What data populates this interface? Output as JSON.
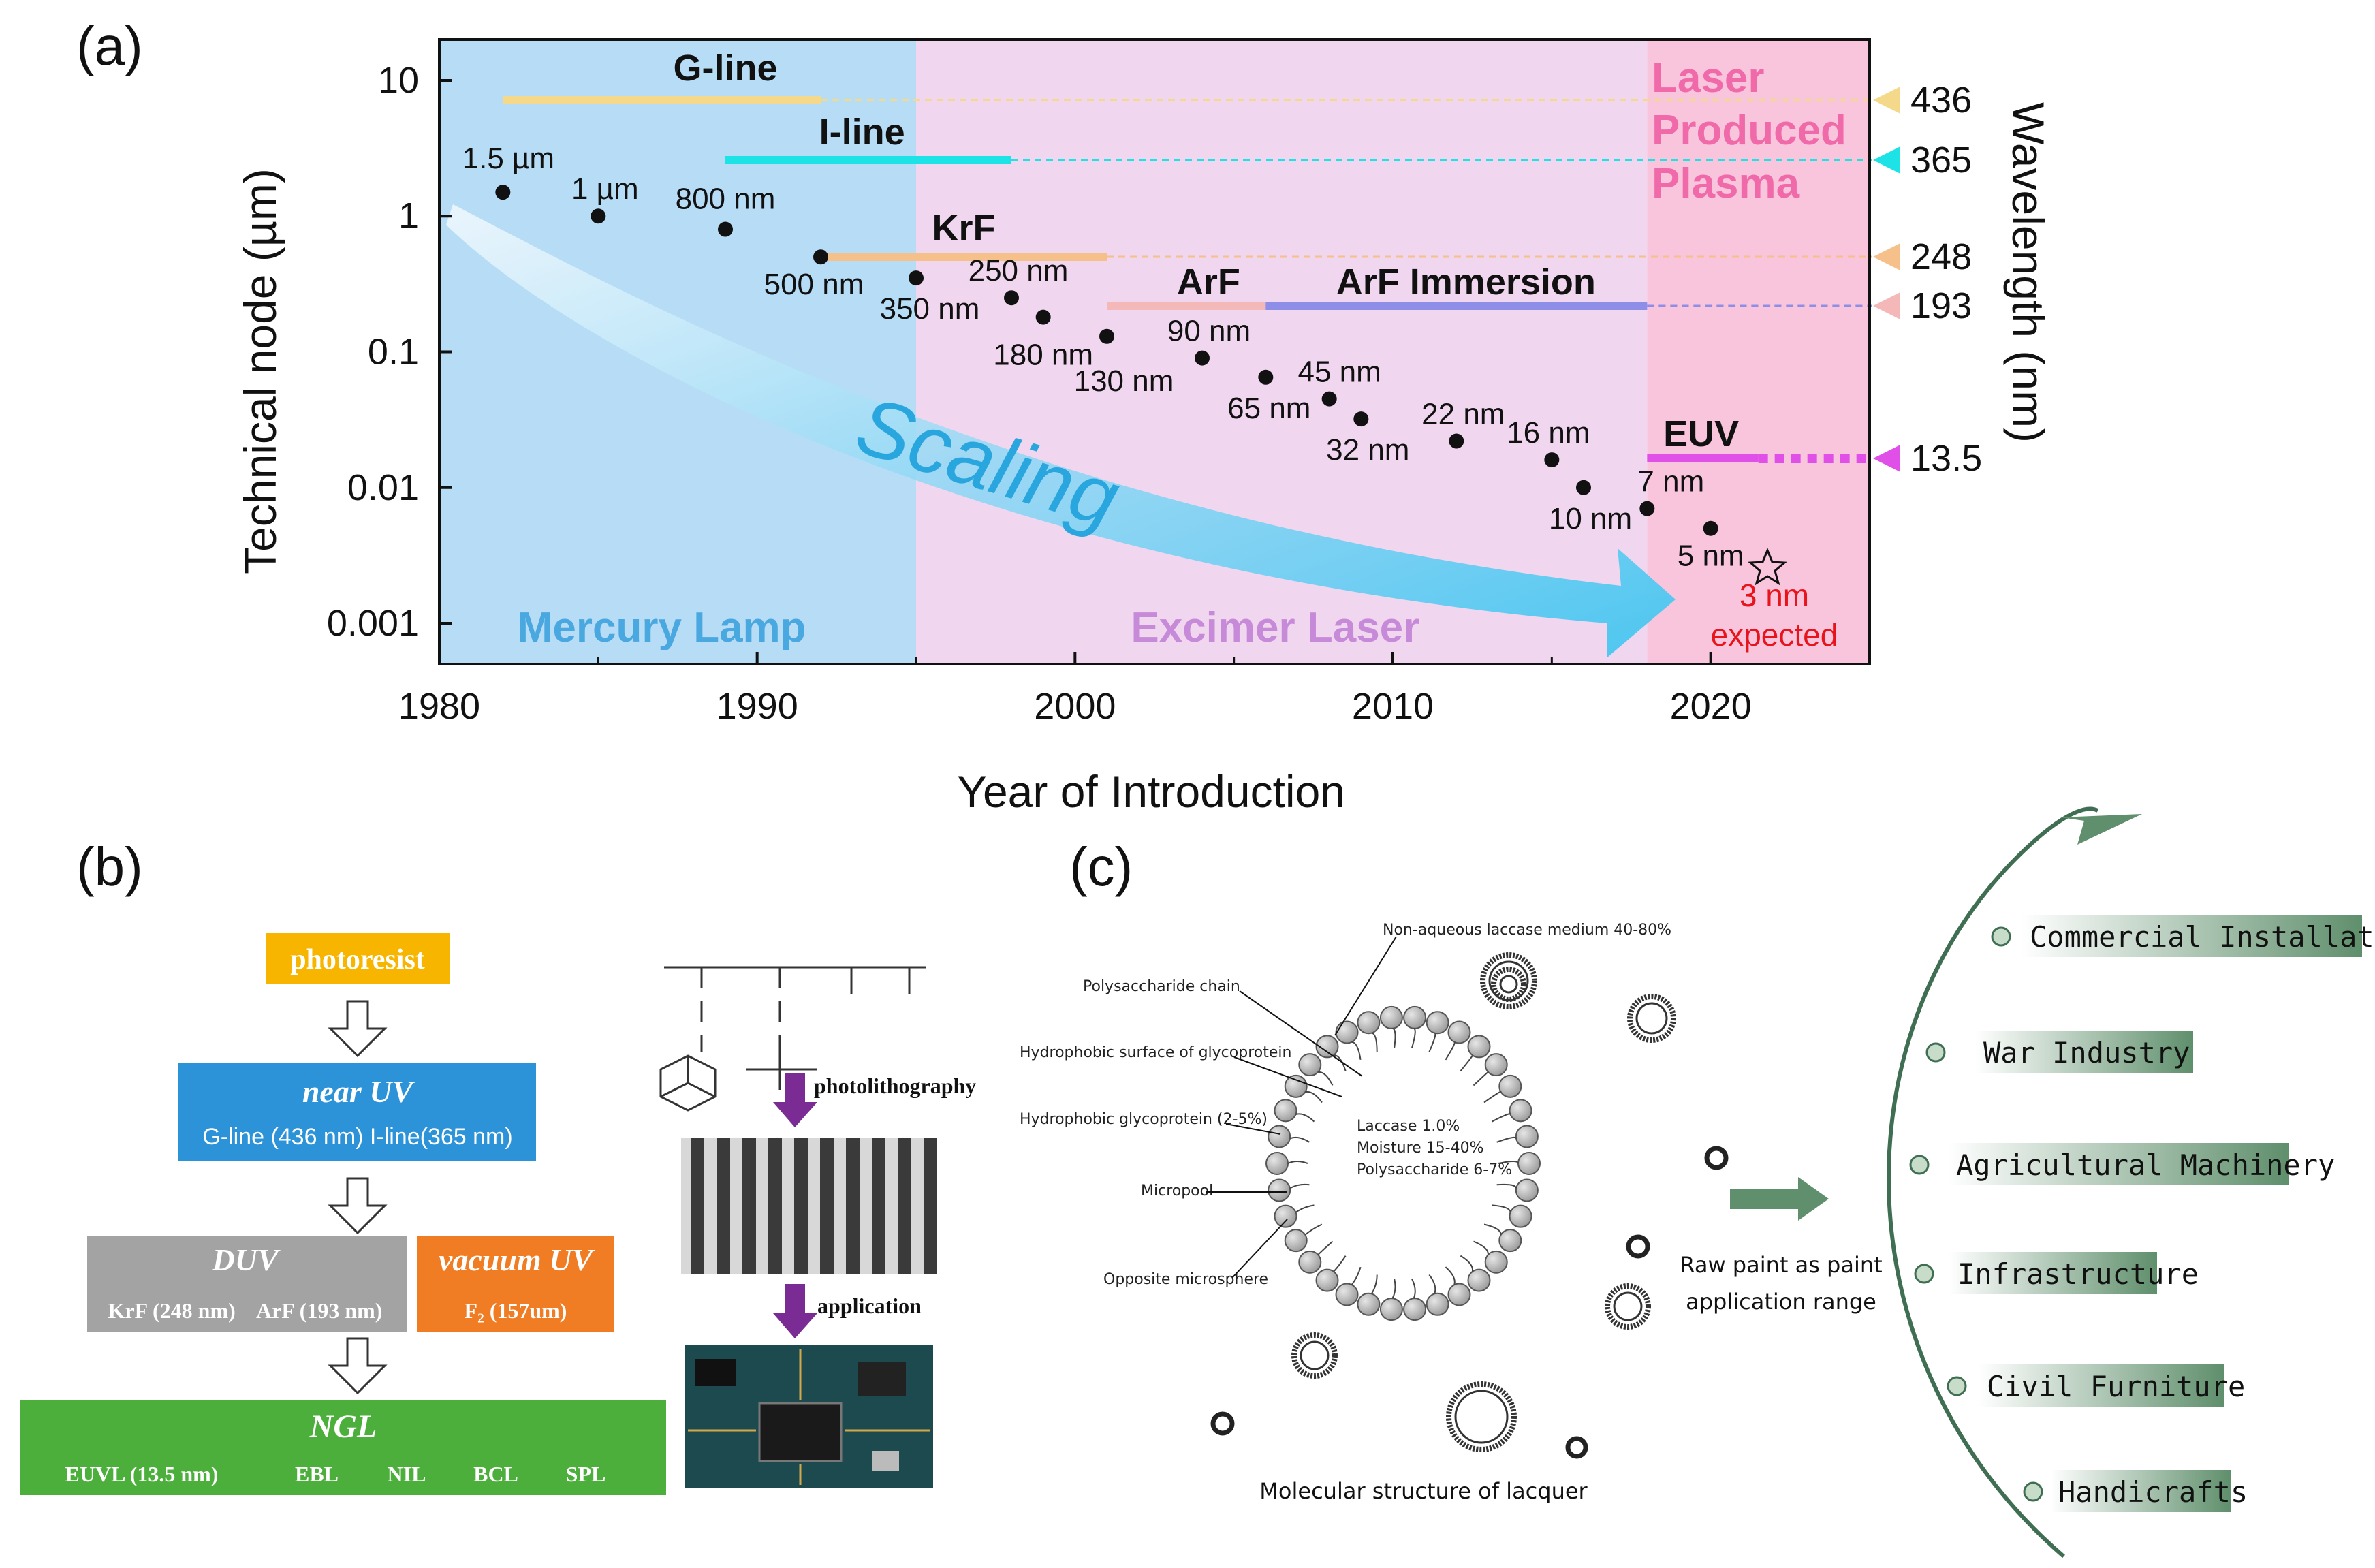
{
  "panels": {
    "a": "(a)",
    "b": "(b)",
    "c": "(c)"
  },
  "chart_data": {
    "type": "scatter",
    "title": "",
    "xlabel": "Year of Introduction",
    "ylabel": "Technical node (µm)",
    "y2label": "Wavelength (nm)",
    "xlim": [
      1980,
      2025
    ],
    "ylim": [
      0.0005,
      20
    ],
    "yscale": "log",
    "xticks": [
      "1980",
      "1990",
      "2000",
      "2010",
      "2020"
    ],
    "yticks": [
      {
        "value": 10,
        "label": "10"
      },
      {
        "value": 1,
        "label": "1"
      },
      {
        "value": 0.1,
        "label": "0.1"
      },
      {
        "value": 0.01,
        "label": "0.01"
      },
      {
        "value": 0.001,
        "label": "0.001"
      }
    ],
    "points": [
      {
        "x": 1982,
        "y": 1.5,
        "label": "1.5 µm"
      },
      {
        "x": 1985,
        "y": 1.0,
        "label": "1 µm"
      },
      {
        "x": 1989,
        "y": 0.8,
        "label": "800 nm"
      },
      {
        "x": 1992,
        "y": 0.5,
        "label": "500 nm"
      },
      {
        "x": 1995,
        "y": 0.35,
        "label": "350 nm"
      },
      {
        "x": 1998,
        "y": 0.25,
        "label": "250 nm"
      },
      {
        "x": 1999,
        "y": 0.18,
        "label": "180 nm"
      },
      {
        "x": 2001,
        "y": 0.13,
        "label": "130 nm"
      },
      {
        "x": 2004,
        "y": 0.09,
        "label": "90 nm"
      },
      {
        "x": 2006,
        "y": 0.065,
        "label": "65 nm"
      },
      {
        "x": 2008,
        "y": 0.045,
        "label": "45 nm"
      },
      {
        "x": 2009,
        "y": 0.032,
        "label": "32 nm"
      },
      {
        "x": 2012,
        "y": 0.022,
        "label": "22 nm"
      },
      {
        "x": 2015,
        "y": 0.016,
        "label": "16 nm"
      },
      {
        "x": 2016,
        "y": 0.01,
        "label": "10 nm"
      },
      {
        "x": 2018,
        "y": 0.007,
        "label": "7 nm"
      },
      {
        "x": 2020,
        "y": 0.005,
        "label": "5 nm"
      }
    ],
    "expected": {
      "label": "3 nm",
      "note": "expected",
      "color": "#e8141c"
    },
    "light_sources": [
      {
        "name": "G-line",
        "wavelength": "436",
        "start": 1982,
        "end": 1992,
        "color": "#f5d98a"
      },
      {
        "name": "I-line",
        "wavelength": "365",
        "start": 1989,
        "end": 1998,
        "color": "#1de3e6"
      },
      {
        "name": "KrF",
        "wavelength": "248",
        "start": 1992,
        "end": 2001,
        "color": "#f5c08a"
      },
      {
        "name": "ArF",
        "wavelength": "193",
        "start": 2001,
        "end": 2006,
        "color": "#f5b8b8"
      },
      {
        "name": "ArF Immersion",
        "wavelength": "",
        "start": 2006,
        "end": 2018,
        "color": "#8e8ee8"
      },
      {
        "name": "EUV",
        "wavelength": "13.5",
        "start": 2018,
        "end": 2021.5,
        "color": "#e050e8"
      }
    ],
    "regions": [
      {
        "name": "Mercury Lamp",
        "start": 1980,
        "end": 1995,
        "color": "#b7dcf5"
      },
      {
        "name": "Excimer Laser",
        "start": 1995,
        "end": 2018,
        "color": "#f0d6ee"
      },
      {
        "name": "Laser Produced Plasma",
        "start": 2018,
        "end": 2025,
        "color": "#f9c5dd"
      }
    ],
    "trend_label": "Scaling",
    "lpp_label": [
      "Laser",
      "Produced",
      "Plasma"
    ]
  },
  "flow": {
    "photoresist": "photoresist",
    "near_uv_title": "near UV",
    "near_uv_sub": "G-line (436 nm) I-line(365 nm)",
    "duv_title": "DUV",
    "duv_sub": "KrF (248 nm)    ArF (193 nm)",
    "vacuum_title": "vacuum UV",
    "vacuum_sub": "F₂ (157um)",
    "ngl_title": "NGL",
    "ngl_items": [
      "EUVL (13.5 nm)",
      "EBL",
      "NIL",
      "BCL",
      "SPL"
    ],
    "step1": "photolithography",
    "step2": "application"
  },
  "lacquer": {
    "labels": [
      "Non-aqueous laccase medium 40-80%",
      "Polysaccharide chain",
      "Hydrophobic surface of glycoprotein",
      "Hydrophobic glycoprotein (2-5%)",
      "Micropool",
      "Opposite microsphere"
    ],
    "inner": [
      "Laccase  1.0%",
      "Moisture 15-40%",
      "Polysaccharide 6-7%"
    ],
    "caption": "Molecular structure of lacquer",
    "arrow_text": [
      "Raw paint as paint",
      "application range"
    ]
  },
  "applications": [
    "Commercial  Installation",
    "War Industry",
    "Agricultural Machinery",
    "Infrastructure",
    "Civil Furniture",
    "Handicrafts"
  ],
  "colors": {
    "flow_yellow": "#f7b500",
    "flow_blue": "#2d93d8",
    "flow_gray": "#a3a3a3",
    "flow_orange": "#f07d23",
    "flow_green": "#4caf3c",
    "purple_arrow": "#7a2b94",
    "app_green": "#5f8f6c"
  }
}
